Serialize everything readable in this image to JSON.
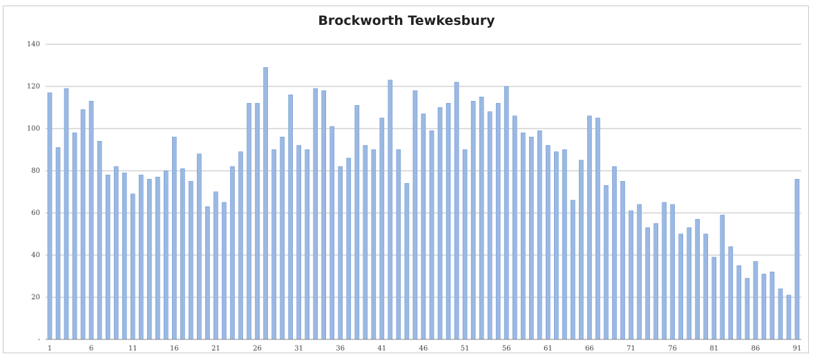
{
  "chart_data": {
    "type": "bar",
    "title": "Brockworth Tewkesbury",
    "xlabel": "",
    "ylabel": "",
    "ylim": [
      0,
      140
    ],
    "y_ticks": [
      "-",
      "20",
      "40",
      "60",
      "80",
      "100",
      "120",
      "140"
    ],
    "y_tick_values": [
      0,
      20,
      40,
      60,
      80,
      100,
      120,
      140
    ],
    "x_tick_labels": [
      "1",
      "6",
      "11",
      "16",
      "21",
      "26",
      "31",
      "36",
      "41",
      "46",
      "51",
      "56",
      "61",
      "66",
      "71",
      "76",
      "81",
      "86",
      "91"
    ],
    "grid": true,
    "bar_color": "#9bb9e3",
    "bar_edge_color": "#6f97d0",
    "categories": [
      "1",
      "2",
      "3",
      "4",
      "5",
      "6",
      "7",
      "8",
      "9",
      "10",
      "11",
      "12",
      "13",
      "14",
      "15",
      "16",
      "17",
      "18",
      "19",
      "20",
      "21",
      "22",
      "23",
      "24",
      "25",
      "26",
      "27",
      "28",
      "29",
      "30",
      "31",
      "32",
      "33",
      "34",
      "35",
      "36",
      "37",
      "38",
      "39",
      "40",
      "41",
      "42",
      "43",
      "44",
      "45",
      "46",
      "47",
      "48",
      "49",
      "50",
      "51",
      "52",
      "53",
      "54",
      "55",
      "56",
      "57",
      "58",
      "59",
      "60",
      "61",
      "62",
      "63",
      "64",
      "65",
      "66",
      "67",
      "68",
      "69",
      "70",
      "71",
      "72",
      "73",
      "74",
      "75",
      "76",
      "77",
      "78",
      "79",
      "80",
      "81",
      "82",
      "83",
      "84",
      "85",
      "86",
      "87",
      "88",
      "89",
      "90",
      "91"
    ],
    "values": [
      117,
      91,
      119,
      98,
      109,
      113,
      94,
      78,
      82,
      79,
      69,
      78,
      76,
      77,
      80,
      96,
      81,
      75,
      88,
      63,
      70,
      65,
      82,
      89,
      112,
      112,
      129,
      90,
      96,
      116,
      92,
      90,
      119,
      118,
      101,
      82,
      86,
      111,
      92,
      90,
      105,
      123,
      90,
      74,
      118,
      107,
      99,
      110,
      112,
      122,
      90,
      113,
      115,
      108,
      112,
      120,
      106,
      98,
      96,
      99,
      92,
      89,
      90,
      66,
      85,
      106,
      105,
      73,
      82,
      75,
      61,
      64,
      53,
      55,
      65,
      64,
      50,
      53,
      57,
      50,
      39,
      59,
      44,
      35,
      29,
      37,
      31,
      32,
      24,
      21,
      76
    ]
  }
}
